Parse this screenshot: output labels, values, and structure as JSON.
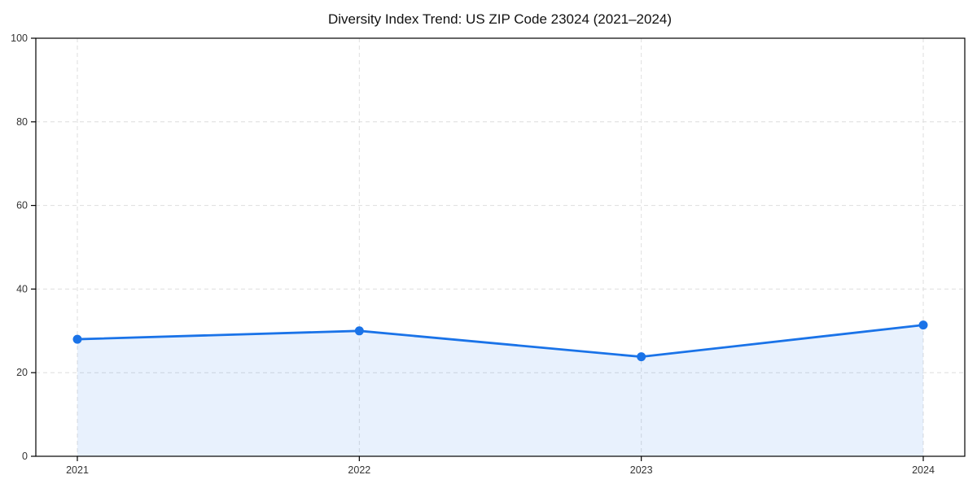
{
  "page": {
    "background": "#ffffff"
  },
  "chart_data": {
    "type": "area",
    "title": "Diversity Index Trend: US ZIP Code 23024 (2021–2024)",
    "categories": [
      "2021",
      "2022",
      "2023",
      "2024"
    ],
    "series": [
      {
        "name": "Diversity Index",
        "values": [
          28.0,
          30.0,
          23.8,
          31.4
        ]
      }
    ],
    "xlabel": "",
    "ylabel": "",
    "ylim": [
      0,
      100
    ],
    "yticks": [
      0,
      20,
      40,
      60,
      80,
      100
    ],
    "grid": true,
    "grid_style": "dashed",
    "legend": "none",
    "colors": {
      "line": "#1a73e8",
      "marker": "#1a73e8",
      "fill": "#1a73e8",
      "fill_opacity": 0.1,
      "gridline": "#dedede",
      "axis_frame": "#000000",
      "tick_label": "#333333",
      "title_text": "#111111"
    }
  }
}
